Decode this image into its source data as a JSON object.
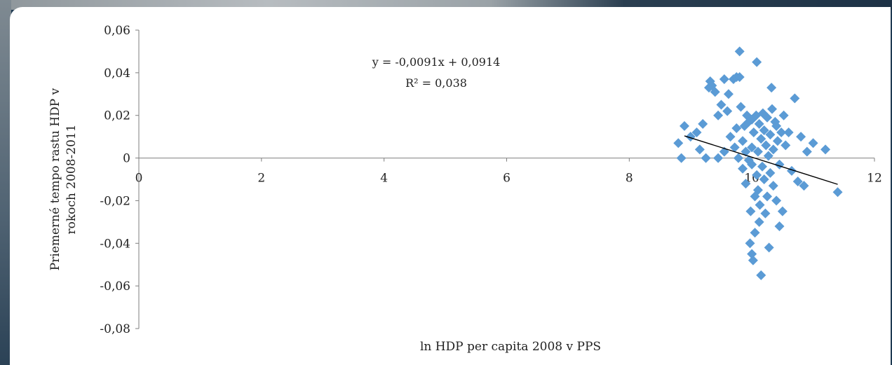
{
  "chart_data": {
    "type": "scatter",
    "xlabel": "ln HDP per capita 2008 v PPS",
    "ylabel_line1": "Priemerné tempo rastu HDP v",
    "ylabel_line2": "rokoch 2008-2011",
    "xlim": [
      0,
      12
    ],
    "ylim": [
      -0.08,
      0.06
    ],
    "x_ticks": [
      {
        "value": 0,
        "label": "0"
      },
      {
        "value": 2,
        "label": "2"
      },
      {
        "value": 4,
        "label": "4"
      },
      {
        "value": 6,
        "label": "6"
      },
      {
        "value": 8,
        "label": "8"
      },
      {
        "value": 10,
        "label": "10"
      },
      {
        "value": 12,
        "label": "12"
      }
    ],
    "y_ticks": [
      {
        "value": 0.06,
        "label": "0,06"
      },
      {
        "value": 0.04,
        "label": "0,04"
      },
      {
        "value": 0.02,
        "label": "0,02"
      },
      {
        "value": 0,
        "label": "0"
      },
      {
        "value": -0.02,
        "label": "-0,02"
      },
      {
        "value": -0.04,
        "label": "-0,04"
      },
      {
        "value": -0.06,
        "label": "-0,06"
      },
      {
        "value": -0.08,
        "label": "-0,08"
      }
    ],
    "grid": false,
    "marker": "diamond",
    "marker_color": "#5b9bd5",
    "trendline": {
      "slope": -0.0091,
      "intercept": 0.0914,
      "x_range": [
        8.9,
        11.4
      ],
      "color": "#000000",
      "equation_line1": "y = -0,0091x  + 0,0914",
      "equation_line2": "R² = 0,038"
    },
    "points": [
      [
        8.8,
        0.007
      ],
      [
        8.85,
        0.0
      ],
      [
        8.9,
        0.015
      ],
      [
        9.0,
        0.01
      ],
      [
        9.1,
        0.012
      ],
      [
        9.15,
        0.004
      ],
      [
        9.2,
        0.016
      ],
      [
        9.25,
        0.0
      ],
      [
        9.3,
        0.033
      ],
      [
        9.32,
        0.036
      ],
      [
        9.35,
        0.034
      ],
      [
        9.4,
        0.031
      ],
      [
        9.45,
        0.0
      ],
      [
        9.45,
        0.02
      ],
      [
        9.5,
        0.025
      ],
      [
        9.55,
        0.037
      ],
      [
        9.55,
        0.003
      ],
      [
        9.6,
        0.022
      ],
      [
        9.62,
        0.03
      ],
      [
        9.65,
        0.01
      ],
      [
        9.7,
        0.037
      ],
      [
        9.72,
        0.005
      ],
      [
        9.75,
        0.038
      ],
      [
        9.75,
        0.014
      ],
      [
        9.78,
        0.0
      ],
      [
        9.8,
        0.038
      ],
      [
        9.8,
        0.05
      ],
      [
        9.82,
        0.024
      ],
      [
        9.85,
        0.008
      ],
      [
        9.85,
        -0.005
      ],
      [
        9.88,
        0.015
      ],
      [
        9.9,
        -0.012
      ],
      [
        9.9,
        0.003
      ],
      [
        9.92,
        0.02
      ],
      [
        9.95,
        -0.001
      ],
      [
        9.95,
        0.017
      ],
      [
        9.97,
        -0.04
      ],
      [
        9.98,
        -0.025
      ],
      [
        10.0,
        0.018
      ],
      [
        10.0,
        0.005
      ],
      [
        10.0,
        -0.003
      ],
      [
        10.0,
        -0.045
      ],
      [
        10.02,
        -0.048
      ],
      [
        10.03,
        0.012
      ],
      [
        10.05,
        -0.018
      ],
      [
        10.05,
        -0.035
      ],
      [
        10.07,
        0.02
      ],
      [
        10.08,
        0.045
      ],
      [
        10.08,
        -0.008
      ],
      [
        10.1,
        0.003
      ],
      [
        10.1,
        -0.015
      ],
      [
        10.12,
        -0.03
      ],
      [
        10.12,
        0.016
      ],
      [
        10.13,
        -0.022
      ],
      [
        10.15,
        0.009
      ],
      [
        10.15,
        -0.055
      ],
      [
        10.17,
        -0.004
      ],
      [
        10.18,
        0.021
      ],
      [
        10.2,
        -0.01
      ],
      [
        10.2,
        0.013
      ],
      [
        10.22,
        -0.026
      ],
      [
        10.23,
        0.006
      ],
      [
        10.25,
        -0.018
      ],
      [
        10.25,
        0.019
      ],
      [
        10.27,
        0.001
      ],
      [
        10.28,
        -0.042
      ],
      [
        10.3,
        0.011
      ],
      [
        10.3,
        -0.007
      ],
      [
        10.32,
        0.033
      ],
      [
        10.33,
        0.023
      ],
      [
        10.35,
        -0.013
      ],
      [
        10.35,
        0.004
      ],
      [
        10.38,
        0.017
      ],
      [
        10.4,
        0.015
      ],
      [
        10.4,
        -0.02
      ],
      [
        10.42,
        0.008
      ],
      [
        10.45,
        -0.032
      ],
      [
        10.45,
        -0.003
      ],
      [
        10.48,
        0.012
      ],
      [
        10.5,
        -0.025
      ],
      [
        10.52,
        0.02
      ],
      [
        10.55,
        0.006
      ],
      [
        10.6,
        0.012
      ],
      [
        10.65,
        -0.006
      ],
      [
        10.7,
        0.028
      ],
      [
        10.75,
        -0.011
      ],
      [
        10.8,
        0.01
      ],
      [
        10.85,
        -0.013
      ],
      [
        10.9,
        0.003
      ],
      [
        11.0,
        0.007
      ],
      [
        11.2,
        0.004
      ],
      [
        11.4,
        -0.016
      ]
    ]
  }
}
